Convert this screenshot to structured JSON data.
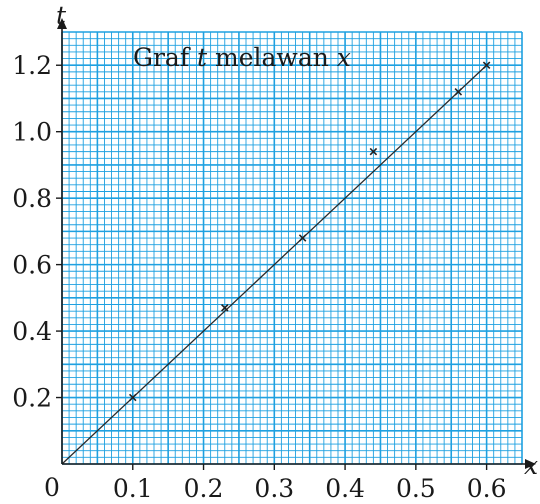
{
  "chart_data": {
    "type": "scatter",
    "title": {
      "prefix": "Graf ",
      "var1": "t",
      "middle": " melawan ",
      "var2": "x"
    },
    "xlabel": "x",
    "ylabel": "t",
    "origin_label": "0",
    "xlim": [
      0,
      0.65
    ],
    "ylim": [
      0,
      1.3
    ],
    "x_ticks": [
      {
        "value": 0.1,
        "label": "0.1"
      },
      {
        "value": 0.2,
        "label": "0.2"
      },
      {
        "value": 0.3,
        "label": "0.3"
      },
      {
        "value": 0.4,
        "label": "0.4"
      },
      {
        "value": 0.5,
        "label": "0.5"
      },
      {
        "value": 0.6,
        "label": "0.6"
      }
    ],
    "y_ticks": [
      {
        "value": 0.2,
        "label": "0.2"
      },
      {
        "value": 0.4,
        "label": "0.4"
      },
      {
        "value": 0.6,
        "label": "0.6"
      },
      {
        "value": 0.8,
        "label": "0.8"
      },
      {
        "value": 1.0,
        "label": "1.0"
      },
      {
        "value": 1.2,
        "label": "1.2"
      }
    ],
    "grid": true,
    "grid_minor_step_x": 0.01,
    "grid_minor_step_y": 0.02,
    "grid_color": "#1ea0e0",
    "background_color": "#ffffff",
    "series": [
      {
        "points": [
          {
            "x": 0.1,
            "y": 0.2
          },
          {
            "x": 0.23,
            "y": 0.47
          },
          {
            "x": 0.34,
            "y": 0.68
          },
          {
            "x": 0.44,
            "y": 0.94
          },
          {
            "x": 0.56,
            "y": 1.12
          },
          {
            "x": 0.6,
            "y": 1.2
          }
        ],
        "marker": "x"
      }
    ],
    "best_fit_line": {
      "from": [
        0,
        0
      ],
      "to": [
        0.6,
        1.2
      ]
    }
  }
}
